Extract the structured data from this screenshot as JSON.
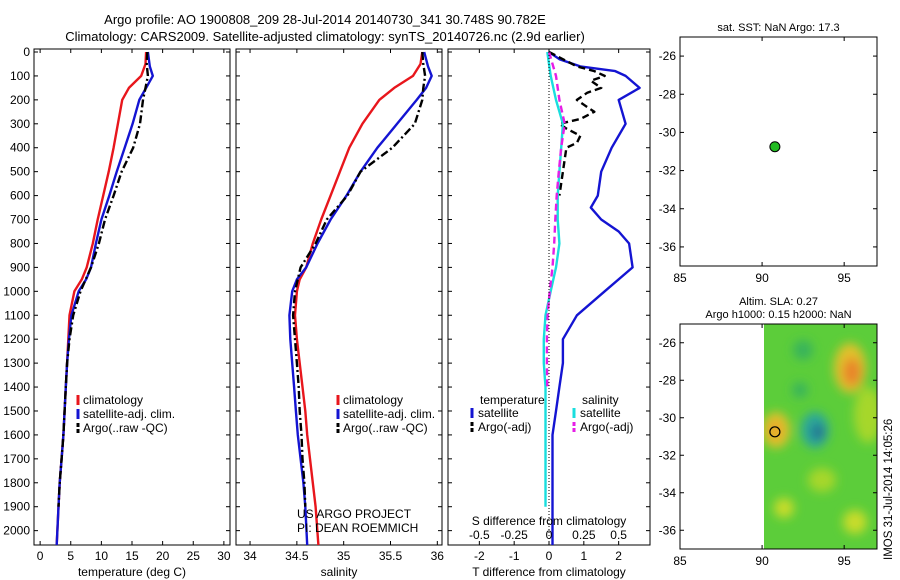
{
  "header": {
    "title_line1": "Argo profile: AO 1900808_209 28-Jul-2014 20140730_341 30.748S 90.782E",
    "title_line2": "Climatology: CARS2009. Satellite-adjusted climatology: synTS_20140726.nc (2.9d earlier)"
  },
  "footer": {
    "project": "US ARGO PROJECT",
    "pi": "PI: DEAN ROEMMICH",
    "sidebar": "IMOS 31-Jul-2014 14:05:26"
  },
  "colors": {
    "climatology": "#e8161c",
    "satellite": "#1414d2",
    "argo": "#000000",
    "sat_salinity": "#19dede",
    "argo_salinity": "#e61ee6",
    "argo_marker": "#22bb22"
  },
  "chart_data": [
    {
      "id": "temperature",
      "type": "line",
      "xlabel": "temperature (deg C)",
      "xlim": [
        -1,
        31
      ],
      "xticks": [
        0,
        5,
        10,
        15,
        20,
        25,
        30
      ],
      "ylim": [
        2060,
        0
      ],
      "yticks": [
        0,
        100,
        200,
        300,
        400,
        500,
        600,
        700,
        800,
        900,
        1000,
        1100,
        1200,
        1300,
        1400,
        1500,
        1600,
        1700,
        1800,
        1900,
        2000
      ],
      "series": [
        {
          "name": "climatology",
          "color": "#e8161c",
          "style": "solid",
          "x": [
            17.3,
            17.2,
            16.5,
            14.5,
            13.4,
            12.7,
            12.0,
            11.2,
            10.3,
            9.4,
            8.6,
            7.6,
            6.8,
            5.6,
            4.8,
            4.6,
            4.4,
            4.2,
            4.0,
            3.8,
            3.5,
            3.2,
            3.0,
            2.7
          ],
          "y": [
            0,
            50,
            100,
            150,
            200,
            300,
            400,
            500,
            600,
            700,
            800,
            900,
            950,
            1000,
            1100,
            1200,
            1300,
            1400,
            1500,
            1600,
            1700,
            1800,
            1900,
            2060
          ]
        },
        {
          "name": "satellite-adj. clim.",
          "color": "#1414d2",
          "style": "solid",
          "x": [
            17.6,
            17.9,
            18.4,
            17.3,
            16.2,
            15.1,
            13.8,
            12.5,
            11.3,
            10.0,
            9.1,
            8.3,
            7.5,
            6.3,
            5.1,
            4.7,
            4.4,
            4.2,
            4.0,
            3.8,
            3.5,
            3.2,
            3.0,
            2.7
          ],
          "y": [
            0,
            60,
            100,
            150,
            200,
            300,
            400,
            500,
            600,
            700,
            800,
            900,
            950,
            1000,
            1100,
            1200,
            1300,
            1400,
            1500,
            1600,
            1700,
            1800,
            1900,
            2060
          ]
        },
        {
          "name": "Argo(..raw -QC)",
          "color": "#000000",
          "style": "dashdot",
          "x": [
            17.5,
            17.4,
            17.6,
            17.2,
            16.8,
            16.3,
            15.2,
            13.3,
            12.0,
            10.6,
            9.6,
            8.3,
            6.6,
            5.4,
            4.8,
            4.4,
            4.2,
            4.0,
            3.8,
            3.5,
            3.2,
            3.0
          ],
          "y": [
            0,
            50,
            100,
            150,
            200,
            300,
            400,
            500,
            600,
            700,
            800,
            900,
            1000,
            1100,
            1200,
            1300,
            1400,
            1500,
            1600,
            1700,
            1800,
            1900
          ]
        }
      ],
      "legend": [
        "climatology",
        "satellite-adj. clim.",
        "Argo(..raw -QC)"
      ],
      "legend_position": "lower-right"
    },
    {
      "id": "salinity",
      "type": "line",
      "xlabel": "salinity",
      "xlim": [
        33.85,
        36.05
      ],
      "xticks": [
        34,
        34.5,
        35,
        35.5,
        36
      ],
      "xticklabels": [
        "34",
        "34.5",
        "35",
        "35.5",
        "36"
      ],
      "ylim": [
        2060,
        0
      ],
      "series": [
        {
          "name": "climatology",
          "color": "#e8161c",
          "style": "solid",
          "x": [
            35.84,
            35.82,
            35.74,
            35.54,
            35.38,
            35.2,
            35.06,
            34.96,
            34.86,
            34.76,
            34.67,
            34.6,
            34.53,
            34.5,
            34.48,
            34.5,
            34.53,
            34.56,
            34.59,
            34.61,
            34.64,
            34.67,
            34.7,
            34.73
          ],
          "y": [
            0,
            50,
            100,
            150,
            200,
            300,
            400,
            500,
            600,
            700,
            800,
            900,
            950,
            1000,
            1100,
            1200,
            1300,
            1400,
            1500,
            1600,
            1700,
            1800,
            1900,
            2060
          ]
        },
        {
          "name": "satellite-adj. clim.",
          "color": "#1414d2",
          "style": "solid",
          "x": [
            35.86,
            35.9,
            35.94,
            35.88,
            35.78,
            35.57,
            35.36,
            35.18,
            35.03,
            34.86,
            34.72,
            34.6,
            34.5,
            34.45,
            34.42,
            34.43,
            34.45,
            34.47,
            34.49,
            34.51,
            34.54,
            34.57,
            34.59,
            34.61
          ],
          "y": [
            0,
            60,
            100,
            150,
            200,
            300,
            400,
            500,
            600,
            700,
            800,
            900,
            950,
            1000,
            1100,
            1200,
            1300,
            1400,
            1500,
            1600,
            1700,
            1800,
            1900,
            2060
          ]
        },
        {
          "name": "Argo(..raw -QC)",
          "color": "#000000",
          "style": "dashdot",
          "x": [
            35.84,
            35.85,
            35.87,
            35.85,
            35.84,
            35.76,
            35.52,
            35.18,
            35.04,
            34.82,
            34.7,
            34.54,
            34.48,
            34.46,
            34.48,
            34.5,
            34.52,
            34.53,
            34.55,
            34.56,
            34.58,
            34.59
          ],
          "y": [
            0,
            50,
            100,
            150,
            200,
            300,
            400,
            500,
            600,
            700,
            800,
            900,
            1000,
            1100,
            1200,
            1300,
            1400,
            1500,
            1600,
            1700,
            1800,
            1900
          ]
        }
      ],
      "legend": [
        "climatology",
        "satellite-adj. clim.",
        "Argo(..raw -QC)"
      ],
      "legend_position": "lower-right"
    },
    {
      "id": "difference",
      "type": "line",
      "xlabel": "T difference from climatology",
      "top_axis_label": "S difference from climatology",
      "xlim": [
        -2.9,
        2.9
      ],
      "xticks": [
        -2,
        -1,
        0,
        1,
        2
      ],
      "top_ticks": [
        "-0.5",
        "-0.25",
        "0",
        "0.25",
        "0.5"
      ],
      "zero_line": "dotted",
      "ylim": [
        2060,
        0
      ],
      "series": [
        {
          "name": "temperature satellite",
          "color": "#1414d2",
          "style": "solid",
          "x": [
            0,
            0.3,
            0.9,
            1.9,
            2.2,
            2.6,
            2.0,
            2.2,
            1.8,
            1.5,
            1.4,
            1.2,
            1.5,
            2.0,
            2.3,
            2.4,
            1.6,
            0.8,
            0.4,
            0.4,
            0.3,
            0.2,
            0.1,
            0.1,
            0.1,
            0.1,
            0.1
          ],
          "y": [
            0,
            30,
            60,
            80,
            100,
            150,
            200,
            300,
            400,
            500,
            600,
            650,
            700,
            750,
            800,
            900,
            1000,
            1100,
            1200,
            1300,
            1400,
            1500,
            1600,
            1700,
            1800,
            1900,
            2060
          ]
        },
        {
          "name": "temperature Argo(-adj)",
          "color": "#000000",
          "style": "dashed",
          "x": [
            0,
            0.8,
            1.3,
            1.6,
            1.2,
            1.5,
            1.1,
            0.8,
            1.0,
            1.3,
            0.9,
            0.3,
            0.5,
            0.9,
            0.8,
            0.5,
            0.3
          ],
          "y": [
            0,
            60,
            80,
            100,
            120,
            150,
            170,
            200,
            220,
            250,
            280,
            300,
            320,
            350,
            380,
            400,
            600
          ]
        },
        {
          "name": "salinity satellite",
          "color": "#19dede",
          "style": "solid",
          "x": [
            -0.05,
            0.05,
            0.2,
            0.4,
            0.35,
            0.3,
            0.25,
            0.25,
            0.3,
            0.2,
            0.05,
            -0.1,
            -0.15,
            -0.15,
            -0.1,
            -0.1,
            -0.1,
            -0.1,
            -0.1,
            -0.1
          ],
          "y": [
            0,
            100,
            200,
            300,
            400,
            500,
            600,
            700,
            800,
            900,
            1000,
            1100,
            1200,
            1300,
            1400,
            1500,
            1600,
            1700,
            1800,
            1900
          ]
        },
        {
          "name": "salinity Argo(-adj)",
          "color": "#e61ee6",
          "style": "dashed",
          "x": [
            0,
            0.2,
            0.3,
            0.45,
            0.35,
            0.28,
            0.22,
            0.18,
            0.15,
            0.1,
            0.02,
            -0.04,
            -0.06,
            -0.06,
            -0.05
          ],
          "y": [
            0,
            100,
            200,
            300,
            400,
            500,
            600,
            700,
            800,
            900,
            1000,
            1100,
            1200,
            1300,
            1400
          ]
        }
      ],
      "legend": {
        "temperature_heading": "temperature",
        "salinity_heading": "salinity",
        "satellite": "satellite",
        "argo": "Argo(-adj)"
      }
    },
    {
      "id": "sst_map",
      "type": "scatter",
      "title": "sat. SST: NaN Argo: 17.3",
      "xlim": [
        85,
        97
      ],
      "ylim": [
        -37,
        -25
      ],
      "xticks": [
        85,
        90,
        95
      ],
      "yticks": [
        -26,
        -28,
        -30,
        -32,
        -34,
        -36
      ],
      "points": [
        {
          "lon": 90.78,
          "lat": -30.75
        }
      ]
    },
    {
      "id": "sla_map",
      "type": "heatmap",
      "title_line1": "Altim. SLA: 0.27",
      "title_line2": "Argo h1000: 0.15 h2000: NaN",
      "xlim": [
        85,
        97
      ],
      "ylim": [
        -37,
        -25
      ],
      "xticks": [
        85,
        90,
        95
      ],
      "yticks": [
        -26,
        -28,
        -30,
        -32,
        -34,
        -36
      ],
      "data_lon_range": [
        90,
        97
      ],
      "points": [
        {
          "lon": 90.78,
          "lat": -30.75
        }
      ]
    }
  ]
}
